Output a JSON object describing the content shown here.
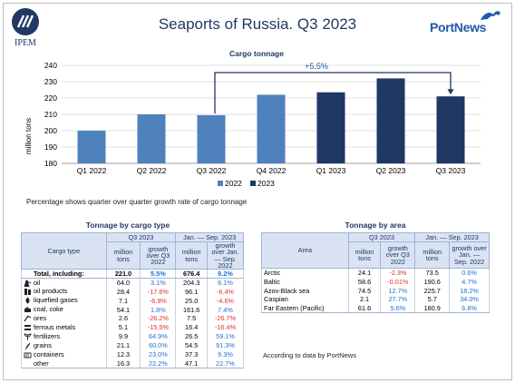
{
  "header": {
    "title": "Seaports of Russia. Q3 2023",
    "left_logo_text": "IPEM",
    "right_logo_text": "PortNews"
  },
  "chart_data": {
    "type": "bar",
    "title": "Cargo tonnage",
    "ylabel": "million tons",
    "xlabel": "",
    "categories": [
      "Q1 2022",
      "Q2 2022",
      "Q3 2022",
      "Q4 2022",
      "Q1 2023",
      "Q2 2023",
      "Q3 2023"
    ],
    "series": [
      {
        "name": "2022",
        "values": [
          200,
          210,
          209.5,
          222,
          null,
          null,
          null
        ],
        "color": "#4f81bd"
      },
      {
        "name": "2023",
        "values": [
          null,
          null,
          null,
          null,
          223.5,
          232,
          221
        ],
        "color": "#1f3864"
      }
    ],
    "ylim": [
      180,
      240
    ],
    "yticks": [
      180,
      190,
      200,
      210,
      220,
      230,
      240
    ],
    "grid": true,
    "legend": "bottom",
    "annotation": {
      "text": "+5.5%",
      "from": "Q3 2022",
      "to": "Q3 2023"
    }
  },
  "footnote": "Percentage shows quarter over quarter growth rate of cargo tonnage",
  "cargo_table": {
    "title": "Tonnage by cargo type",
    "col_label": "Cargo type",
    "group1": "Q3 2023",
    "group2": "Jan. — Sep. 2023",
    "sub1a": "million tons",
    "sub1b": "growth over Q3 2022",
    "sub2a": "million tons",
    "sub2b": "growth over Jan. — Sep. 2022",
    "rows": [
      {
        "name": "Total, including:",
        "icon": "",
        "v1": "221.0",
        "g1": "5.5%",
        "v2": "676.4",
        "g2": "9.2%",
        "total": true
      },
      {
        "name": "oil",
        "icon": "oil-icon",
        "v1": "64.0",
        "g1": "3.1%",
        "v2": "204.3",
        "g2": "6.1%"
      },
      {
        "name": "oil products",
        "icon": "oil-products-icon",
        "v1": "28.4",
        "g1": "-17.6%",
        "v2": "96.1",
        "g2": "-6.4%"
      },
      {
        "name": "liquefied gases",
        "icon": "liquefied-gas-icon",
        "v1": "7.1",
        "g1": "-6.9%",
        "v2": "25.0",
        "g2": "-4.6%"
      },
      {
        "name": "coal, coke",
        "icon": "coal-icon",
        "v1": "54.1",
        "g1": "1.8%",
        "v2": "161.6",
        "g2": "7.4%"
      },
      {
        "name": "ores",
        "icon": "ore-icon",
        "v1": "2.6",
        "g1": "-26.2%",
        "v2": "7.5",
        "g2": "-26.7%"
      },
      {
        "name": "ferrous metals",
        "icon": "ferrous-metals-icon",
        "v1": "5.1",
        "g1": "-15.5%",
        "v2": "16.4",
        "g2": "-16.4%"
      },
      {
        "name": "fertilizers",
        "icon": "fertilizers-icon",
        "v1": "9.9",
        "g1": "64.9%",
        "v2": "26.5",
        "g2": "59.1%"
      },
      {
        "name": "grains",
        "icon": "grain-icon",
        "v1": "21.1",
        "g1": "60.0%",
        "v2": "54.5",
        "g2": "91.3%"
      },
      {
        "name": "containers",
        "icon": "container-icon",
        "v1": "12.3",
        "g1": "23.0%",
        "v2": "37.3",
        "g2": "9.3%"
      },
      {
        "name": "other",
        "icon": "",
        "v1": "16.3",
        "g1": "22.2%",
        "v2": "47.1",
        "g2": "22.7%"
      }
    ]
  },
  "area_table": {
    "title": "Tonnage by area",
    "col_label": "Area",
    "group1": "Q3 2023",
    "group2": "Jan. — Sep. 2023",
    "sub1a": "million tons",
    "sub1b": "growth over Q3 2022",
    "sub2a": "million tons",
    "sub2b": "growth over Jan. — Sep. 2022",
    "rows": [
      {
        "name": "Arctic",
        "v1": "24.1",
        "g1": "-2.3%",
        "v2": "73.5",
        "g2": "0.6%"
      },
      {
        "name": "Baltic",
        "v1": "58.6",
        "g1": "-0.01%",
        "v2": "190.6",
        "g2": "4.7%"
      },
      {
        "name": "Azov-Black sea",
        "v1": "74.5",
        "g1": "12.7%",
        "v2": "225.7",
        "g2": "18.2%"
      },
      {
        "name": "Caspian",
        "v1": "2.1",
        "g1": "27.7%",
        "v2": "5.7",
        "g2": "34.0%"
      },
      {
        "name": "Far Eastern (Pacific)",
        "v1": "61.6",
        "g1": "5.6%",
        "v2": "180.9",
        "g2": "6.8%"
      }
    ]
  },
  "source_note": "According to data by PortNews",
  "colors": {
    "accent_2022": "#4f81bd",
    "accent_2023": "#1f3864",
    "positive": "#1f6fd1",
    "negative": "#e0312b",
    "header_bg": "#dae3f3"
  }
}
